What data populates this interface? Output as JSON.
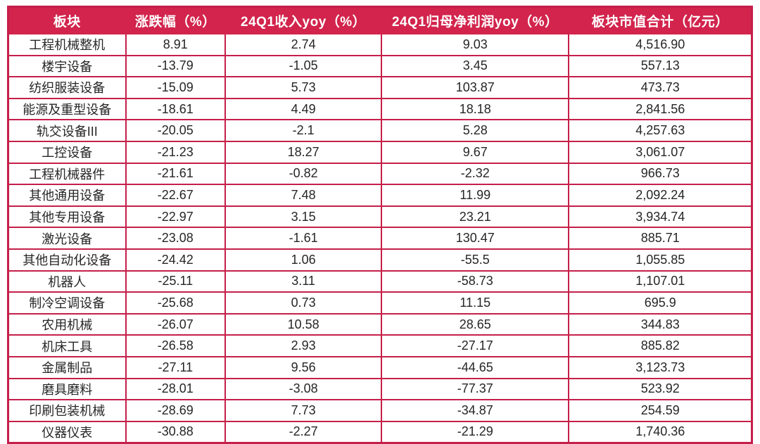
{
  "chart_data": {
    "type": "table",
    "columns": [
      "板块",
      "涨跌幅（%）",
      "24Q1收入yoy（%）",
      "24Q1归母净利润yoy（%）",
      "板块市值合计（亿元）"
    ],
    "rows": [
      [
        "工程机械整机",
        "8.91",
        "2.74",
        "9.03",
        "4,516.90"
      ],
      [
        "楼宇设备",
        "-13.79",
        "-1.05",
        "3.45",
        "557.13"
      ],
      [
        "纺织服装设备",
        "-15.09",
        "5.73",
        "103.87",
        "473.73"
      ],
      [
        "能源及重型设备",
        "-18.61",
        "4.49",
        "18.18",
        "2,841.56"
      ],
      [
        "轨交设备III",
        "-20.05",
        "-2.1",
        "5.28",
        "4,257.63"
      ],
      [
        "工控设备",
        "-21.23",
        "18.27",
        "9.67",
        "3,061.07"
      ],
      [
        "工程机械器件",
        "-21.61",
        "-0.82",
        "-2.32",
        "966.73"
      ],
      [
        "其他通用设备",
        "-22.67",
        "7.48",
        "11.99",
        "2,092.24"
      ],
      [
        "其他专用设备",
        "-22.97",
        "3.15",
        "23.21",
        "3,934.74"
      ],
      [
        "激光设备",
        "-23.08",
        "-1.61",
        "130.47",
        "885.71"
      ],
      [
        "其他自动化设备",
        "-24.42",
        "1.06",
        "-55.5",
        "1,055.85"
      ],
      [
        "机器人",
        "-25.11",
        "3.11",
        "-58.73",
        "1,107.01"
      ],
      [
        "制冷空调设备",
        "-25.68",
        "0.73",
        "11.15",
        "695.9"
      ],
      [
        "农用机械",
        "-26.07",
        "10.58",
        "28.65",
        "344.83"
      ],
      [
        "机床工具",
        "-26.58",
        "2.93",
        "-27.17",
        "885.82"
      ],
      [
        "金属制品",
        "-27.11",
        "9.56",
        "-44.65",
        "3,123.73"
      ],
      [
        "磨具磨料",
        "-28.01",
        "-3.08",
        "-77.37",
        "523.92"
      ],
      [
        "印刷包装机械",
        "-28.69",
        "7.73",
        "-34.87",
        "254.59"
      ],
      [
        "仪器仪表",
        "-30.88",
        "-2.27",
        "-21.29",
        "1,740.36"
      ]
    ]
  },
  "colors": {
    "header_bg": "#D2244C",
    "header_text": "#FFFFFF",
    "border": "#C51F4A",
    "cell_text": "#262626"
  }
}
